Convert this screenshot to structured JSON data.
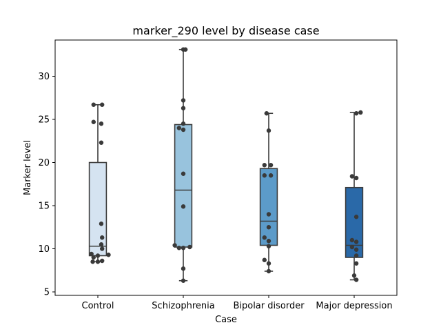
{
  "chart_data": {
    "type": "box",
    "title": "marker_290 level by disease case",
    "xlabel": "Case",
    "ylabel": "Marker level",
    "ylim": [
      4.6,
      34.2
    ],
    "yticks": [
      5,
      10,
      15,
      20,
      25,
      30
    ],
    "categories": [
      "Control",
      "Schizophrenia",
      "Bipolar disorder",
      "Major depression"
    ],
    "box_colors": [
      "#d5e3f1",
      "#98c3dd",
      "#5c9bc9",
      "#2a69a8"
    ],
    "boxes": [
      {
        "whisker_low": 8.5,
        "q1": 9.2,
        "median": 10.3,
        "q3": 20.0,
        "whisker_high": 26.7
      },
      {
        "whisker_low": 6.3,
        "q1": 10.2,
        "median": 16.8,
        "q3": 24.4,
        "whisker_high": 33.1
      },
      {
        "whisker_low": 7.4,
        "q1": 10.4,
        "median": 13.2,
        "q3": 19.3,
        "whisker_high": 25.7
      },
      {
        "whisker_low": 6.4,
        "q1": 9.0,
        "median": 10.4,
        "q3": 17.1,
        "whisker_high": 25.8
      }
    ],
    "points": [
      [
        [
          -0.1,
          26.7
        ],
        [
          0.1,
          26.7
        ],
        [
          -0.1,
          24.7
        ],
        [
          0.08,
          24.5
        ],
        [
          0.08,
          22.3
        ],
        [
          0.08,
          12.9
        ],
        [
          0.1,
          11.3
        ],
        [
          0.08,
          10.5
        ],
        [
          0.1,
          10.0
        ],
        [
          -0.15,
          9.4
        ],
        [
          0.0,
          9.2
        ],
        [
          0.25,
          9.3
        ],
        [
          -0.1,
          9.0
        ],
        [
          0.0,
          8.5
        ],
        [
          -0.12,
          8.5
        ],
        [
          0.1,
          8.6
        ]
      ],
      [
        [
          0.0,
          33.1
        ],
        [
          0.05,
          33.1
        ],
        [
          0.0,
          27.2
        ],
        [
          0.0,
          26.3
        ],
        [
          0.0,
          24.5
        ],
        [
          -0.1,
          24.0
        ],
        [
          0.0,
          23.8
        ],
        [
          0.0,
          18.7
        ],
        [
          0.0,
          14.9
        ],
        [
          -0.2,
          10.4
        ],
        [
          -0.1,
          10.1
        ],
        [
          0.0,
          10.1
        ],
        [
          0.15,
          10.2
        ],
        [
          0.0,
          7.7
        ],
        [
          0.0,
          6.3
        ]
      ],
      [
        [
          -0.05,
          25.7
        ],
        [
          0.0,
          23.7
        ],
        [
          -0.1,
          19.7
        ],
        [
          0.05,
          19.7
        ],
        [
          -0.1,
          18.5
        ],
        [
          0.05,
          18.5
        ],
        [
          0.0,
          14.0
        ],
        [
          0.0,
          12.5
        ],
        [
          -0.1,
          11.3
        ],
        [
          0.0,
          10.9
        ],
        [
          0.0,
          10.3
        ],
        [
          -0.1,
          8.7
        ],
        [
          0.0,
          8.3
        ],
        [
          0.0,
          7.4
        ]
      ],
      [
        [
          0.05,
          25.7
        ],
        [
          0.15,
          25.8
        ],
        [
          -0.05,
          18.4
        ],
        [
          0.05,
          18.2
        ],
        [
          0.05,
          13.7
        ],
        [
          -0.05,
          11.0
        ],
        [
          0.05,
          10.8
        ],
        [
          -0.05,
          10.2
        ],
        [
          0.05,
          9.9
        ],
        [
          0.05,
          9.2
        ],
        [
          0.05,
          8.3
        ],
        [
          0.0,
          6.9
        ],
        [
          0.05,
          6.4
        ]
      ]
    ]
  }
}
